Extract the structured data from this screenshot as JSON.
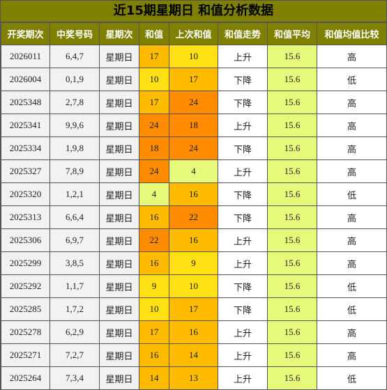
{
  "title": "近15期星期日 和值分析数据",
  "headers": [
    "开奖期次",
    "中奖号码",
    "星期次",
    "和值",
    "上次和值",
    "和值走势",
    "和值平均",
    "和值均值比较"
  ],
  "rows": [
    {
      "issue": "2026011",
      "numbers": "6,4,7",
      "weekday": "星期日",
      "sum": "17",
      "prev_sum": "10",
      "trend": "上升",
      "avg": "15.6",
      "compare": "高"
    },
    {
      "issue": "2026004",
      "numbers": "0,1,9",
      "weekday": "星期日",
      "sum": "10",
      "prev_sum": "17",
      "trend": "下降",
      "avg": "15.6",
      "compare": "低"
    },
    {
      "issue": "2025348",
      "numbers": "2,7,8",
      "weekday": "星期日",
      "sum": "17",
      "prev_sum": "24",
      "trend": "下降",
      "avg": "15.6",
      "compare": "高"
    },
    {
      "issue": "2025341",
      "numbers": "9,9,6",
      "weekday": "星期日",
      "sum": "24",
      "prev_sum": "18",
      "trend": "上升",
      "avg": "15.6",
      "compare": "高"
    },
    {
      "issue": "2025334",
      "numbers": "1,9,8",
      "weekday": "星期日",
      "sum": "18",
      "prev_sum": "24",
      "trend": "下降",
      "avg": "15.6",
      "compare": "高"
    },
    {
      "issue": "2025327",
      "numbers": "7,8,9",
      "weekday": "星期日",
      "sum": "24",
      "prev_sum": "4",
      "trend": "上升",
      "avg": "15.6",
      "compare": "高"
    },
    {
      "issue": "2025320",
      "numbers": "1,2,1",
      "weekday": "星期日",
      "sum": "4",
      "prev_sum": "16",
      "trend": "下降",
      "avg": "15.6",
      "compare": "低"
    },
    {
      "issue": "2025313",
      "numbers": "6,6,4",
      "weekday": "星期日",
      "sum": "16",
      "prev_sum": "22",
      "trend": "下降",
      "avg": "15.6",
      "compare": "高"
    },
    {
      "issue": "2025306",
      "numbers": "6,9,7",
      "weekday": "星期日",
      "sum": "22",
      "prev_sum": "16",
      "trend": "上升",
      "avg": "15.6",
      "compare": "高"
    },
    {
      "issue": "2025299",
      "numbers": "3,8,5",
      "weekday": "星期日",
      "sum": "16",
      "prev_sum": "9",
      "trend": "上升",
      "avg": "15.6",
      "compare": "高"
    },
    {
      "issue": "2025292",
      "numbers": "1,1,7",
      "weekday": "星期日",
      "sum": "9",
      "prev_sum": "10",
      "trend": "下降",
      "avg": "15.6",
      "compare": "低"
    },
    {
      "issue": "2025285",
      "numbers": "1,7,2",
      "weekday": "星期日",
      "sum": "10",
      "prev_sum": "17",
      "trend": "下降",
      "avg": "15.6",
      "compare": "低"
    },
    {
      "issue": "2025278",
      "numbers": "6,2,9",
      "weekday": "星期日",
      "sum": "17",
      "prev_sum": "16",
      "trend": "上升",
      "avg": "15.6",
      "compare": "高"
    },
    {
      "issue": "2025271",
      "numbers": "7,2,7",
      "weekday": "星期日",
      "sum": "16",
      "prev_sum": "14",
      "trend": "上升",
      "avg": "15.6",
      "compare": "高"
    },
    {
      "issue": "2025264",
      "numbers": "7,3,4",
      "weekday": "星期日",
      "sum": "14",
      "prev_sum": "13",
      "trend": "上升",
      "avg": "15.6",
      "compare": "低"
    }
  ],
  "colors": {
    "header_bg": "#7f7f00",
    "sum_low": "#e6f97a",
    "sum_midlow": "#ffe014",
    "sum_mid": "#ffbb00",
    "sum_high": "#ff8c00",
    "avg_bg": "#e6f97a"
  }
}
